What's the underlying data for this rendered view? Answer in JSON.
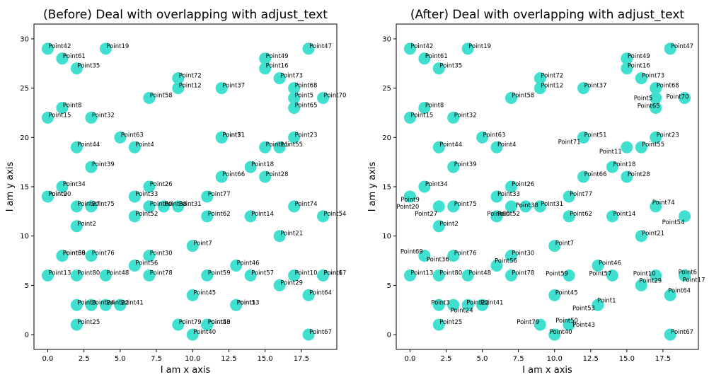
{
  "chart_data": [
    {
      "type": "scatter",
      "title": "(Before) Deal with overlapping with adjust_text",
      "xlabel": "I am x axis",
      "ylabel": "I am y axis",
      "xlim": [
        -0.95,
        19.95
      ],
      "ylim": [
        -1.5,
        31.5
      ],
      "xticks": [
        0.0,
        2.5,
        5.0,
        7.5,
        10.0,
        12.5,
        15.0,
        17.5
      ],
      "yticks": [
        0,
        5,
        10,
        15,
        20,
        25,
        30
      ],
      "grid": false,
      "marker_color": "#40e0d0",
      "points": [
        {
          "label": "Point42",
          "x": 0,
          "y": 29
        },
        {
          "label": "Point19",
          "x": 4,
          "y": 29
        },
        {
          "label": "Point61",
          "x": 1,
          "y": 28
        },
        {
          "label": "Point35",
          "x": 2,
          "y": 27
        },
        {
          "label": "Point49",
          "x": 15,
          "y": 28
        },
        {
          "label": "Point16",
          "x": 15,
          "y": 27
        },
        {
          "label": "Point47",
          "x": 18,
          "y": 29
        },
        {
          "label": "Point73",
          "x": 16,
          "y": 26
        },
        {
          "label": "Point72",
          "x": 9,
          "y": 26
        },
        {
          "label": "Point12",
          "x": 9,
          "y": 25
        },
        {
          "label": "Point37",
          "x": 12,
          "y": 25
        },
        {
          "label": "Point58",
          "x": 7,
          "y": 24
        },
        {
          "label": "Point68",
          "x": 17,
          "y": 25
        },
        {
          "label": "Point5",
          "x": 17,
          "y": 24
        },
        {
          "label": "Point70",
          "x": 19,
          "y": 24
        },
        {
          "label": "Point65",
          "x": 17,
          "y": 23
        },
        {
          "label": "Point8",
          "x": 1,
          "y": 23
        },
        {
          "label": "Point15",
          "x": 0,
          "y": 22
        },
        {
          "label": "Point32",
          "x": 3,
          "y": 22
        },
        {
          "label": "Point63",
          "x": 5,
          "y": 20
        },
        {
          "label": "Point4",
          "x": 6,
          "y": 19
        },
        {
          "label": "Point44",
          "x": 2,
          "y": 19
        },
        {
          "label": "Point51",
          "x": 12,
          "y": 20
        },
        {
          "label": "Point71",
          "x": 12,
          "y": 20
        },
        {
          "label": "Point23",
          "x": 17,
          "y": 20
        },
        {
          "label": "Point11",
          "x": 15,
          "y": 19
        },
        {
          "label": "Point55",
          "x": 16,
          "y": 19
        },
        {
          "label": "Point39",
          "x": 3,
          "y": 17
        },
        {
          "label": "Point18",
          "x": 14,
          "y": 17
        },
        {
          "label": "Point66",
          "x": 12,
          "y": 16
        },
        {
          "label": "Point28",
          "x": 15,
          "y": 16
        },
        {
          "label": "Point34",
          "x": 1,
          "y": 15
        },
        {
          "label": "Point26",
          "x": 7,
          "y": 15
        },
        {
          "label": "Point9",
          "x": 0,
          "y": 14
        },
        {
          "label": "Point20",
          "x": 0,
          "y": 14
        },
        {
          "label": "Point33",
          "x": 6,
          "y": 14
        },
        {
          "label": "Point77",
          "x": 11,
          "y": 14
        },
        {
          "label": "Point27",
          "x": 2,
          "y": 13
        },
        {
          "label": "Point75",
          "x": 3,
          "y": 13
        },
        {
          "label": "Point60",
          "x": 7,
          "y": 13
        },
        {
          "label": "Point38",
          "x": 8,
          "y": 13
        },
        {
          "label": "Point31",
          "x": 9,
          "y": 13
        },
        {
          "label": "Point74",
          "x": 17,
          "y": 13
        },
        {
          "label": "Point52",
          "x": 6,
          "y": 12
        },
        {
          "label": "Point62",
          "x": 11,
          "y": 12
        },
        {
          "label": "Point14",
          "x": 14,
          "y": 12
        },
        {
          "label": "Point54",
          "x": 19,
          "y": 12
        },
        {
          "label": "Point2",
          "x": 2,
          "y": 11
        },
        {
          "label": "Point21",
          "x": 16,
          "y": 10
        },
        {
          "label": "Point7",
          "x": 10,
          "y": 9
        },
        {
          "label": "Point69",
          "x": 1,
          "y": 8
        },
        {
          "label": "Point36",
          "x": 1,
          "y": 8
        },
        {
          "label": "Point76",
          "x": 3,
          "y": 8
        },
        {
          "label": "Point30",
          "x": 7,
          "y": 8
        },
        {
          "label": "Point56",
          "x": 6,
          "y": 7
        },
        {
          "label": "Point46",
          "x": 13,
          "y": 7
        },
        {
          "label": "Point13",
          "x": 0,
          "y": 6
        },
        {
          "label": "Point80",
          "x": 2,
          "y": 6
        },
        {
          "label": "Point48",
          "x": 4,
          "y": 6
        },
        {
          "label": "Point78",
          "x": 7,
          "y": 6
        },
        {
          "label": "Point59",
          "x": 11,
          "y": 6
        },
        {
          "label": "Point57",
          "x": 14,
          "y": 6
        },
        {
          "label": "Point10",
          "x": 17,
          "y": 6
        },
        {
          "label": "Point6",
          "x": 19,
          "y": 6
        },
        {
          "label": "Point17",
          "x": 19,
          "y": 6
        },
        {
          "label": "Point29",
          "x": 16,
          "y": 5
        },
        {
          "label": "Point45",
          "x": 10,
          "y": 4
        },
        {
          "label": "Point64",
          "x": 18,
          "y": 4
        },
        {
          "label": "Point3",
          "x": 2,
          "y": 3
        },
        {
          "label": "Point24",
          "x": 3,
          "y": 3
        },
        {
          "label": "Point22",
          "x": 4,
          "y": 3
        },
        {
          "label": "Point41",
          "x": 5,
          "y": 3
        },
        {
          "label": "Point1",
          "x": 13,
          "y": 3
        },
        {
          "label": "Point53",
          "x": 13,
          "y": 3
        },
        {
          "label": "Point25",
          "x": 2,
          "y": 1
        },
        {
          "label": "Point79",
          "x": 9,
          "y": 1
        },
        {
          "label": "Point50",
          "x": 11,
          "y": 1
        },
        {
          "label": "Point43",
          "x": 11,
          "y": 1
        },
        {
          "label": "Point40",
          "x": 10,
          "y": 0
        },
        {
          "label": "Point67",
          "x": 18,
          "y": 0
        }
      ]
    },
    {
      "type": "scatter",
      "title": "(After) Deal with overlapping with adjust_text",
      "xlabel": "I am x axis",
      "ylabel": "I am y axis",
      "xlim": [
        -0.95,
        19.95
      ],
      "ylim": [
        -1.5,
        31.5
      ],
      "xticks": [
        0.0,
        2.5,
        5.0,
        7.5,
        10.0,
        12.5,
        15.0,
        17.5
      ],
      "yticks": [
        0,
        5,
        10,
        15,
        20,
        25,
        30
      ],
      "grid": false,
      "marker_color": "#40e0d0",
      "points": [
        {
          "label": "Point42",
          "x": 0,
          "y": 29
        },
        {
          "label": "Point19",
          "x": 4,
          "y": 29
        },
        {
          "label": "Point61",
          "x": 1,
          "y": 28
        },
        {
          "label": "Point35",
          "x": 2,
          "y": 27
        },
        {
          "label": "Point49",
          "x": 15,
          "y": 28
        },
        {
          "label": "Point16",
          "x": 15,
          "y": 27
        },
        {
          "label": "Point47",
          "x": 18,
          "y": 29
        },
        {
          "label": "Point73",
          "x": 16,
          "y": 26
        },
        {
          "label": "Point72",
          "x": 9,
          "y": 26
        },
        {
          "label": "Point12",
          "x": 9,
          "y": 25
        },
        {
          "label": "Point37",
          "x": 12,
          "y": 25
        },
        {
          "label": "Point58",
          "x": 7,
          "y": 24
        },
        {
          "label": "Point68",
          "x": 17,
          "y": 25
        },
        {
          "label": "Point5",
          "x": 17,
          "y": 24
        },
        {
          "label": "Point70",
          "x": 19,
          "y": 24
        },
        {
          "label": "Point65",
          "x": 17,
          "y": 23
        },
        {
          "label": "Point8",
          "x": 1,
          "y": 23
        },
        {
          "label": "Point15",
          "x": 0,
          "y": 22
        },
        {
          "label": "Point32",
          "x": 3,
          "y": 22
        },
        {
          "label": "Point63",
          "x": 5,
          "y": 20
        },
        {
          "label": "Point4",
          "x": 6,
          "y": 19
        },
        {
          "label": "Point44",
          "x": 2,
          "y": 19
        },
        {
          "label": "Point51",
          "x": 12,
          "y": 20
        },
        {
          "label": "Point71",
          "x": 12,
          "y": 20
        },
        {
          "label": "Point23",
          "x": 17,
          "y": 20
        },
        {
          "label": "Point11",
          "x": 15,
          "y": 19
        },
        {
          "label": "Point55",
          "x": 16,
          "y": 19
        },
        {
          "label": "Point39",
          "x": 3,
          "y": 17
        },
        {
          "label": "Point18",
          "x": 14,
          "y": 17
        },
        {
          "label": "Point66",
          "x": 12,
          "y": 16
        },
        {
          "label": "Point28",
          "x": 15,
          "y": 16
        },
        {
          "label": "Point34",
          "x": 1,
          "y": 15
        },
        {
          "label": "Point26",
          "x": 7,
          "y": 15
        },
        {
          "label": "Point9",
          "x": 0,
          "y": 14
        },
        {
          "label": "Point20",
          "x": 0,
          "y": 14
        },
        {
          "label": "Point33",
          "x": 6,
          "y": 14
        },
        {
          "label": "Point77",
          "x": 11,
          "y": 14
        },
        {
          "label": "Point27",
          "x": 2,
          "y": 13
        },
        {
          "label": "Point75",
          "x": 3,
          "y": 13
        },
        {
          "label": "Point60",
          "x": 7,
          "y": 13
        },
        {
          "label": "Point38",
          "x": 8,
          "y": 13
        },
        {
          "label": "Point31",
          "x": 9,
          "y": 13
        },
        {
          "label": "Point74",
          "x": 17,
          "y": 13
        },
        {
          "label": "Point52",
          "x": 6,
          "y": 12
        },
        {
          "label": "Point62",
          "x": 11,
          "y": 12
        },
        {
          "label": "Point14",
          "x": 14,
          "y": 12
        },
        {
          "label": "Point54",
          "x": 19,
          "y": 12
        },
        {
          "label": "Point2",
          "x": 2,
          "y": 11
        },
        {
          "label": "Point21",
          "x": 16,
          "y": 10
        },
        {
          "label": "Point7",
          "x": 10,
          "y": 9
        },
        {
          "label": "Point69",
          "x": 1,
          "y": 8
        },
        {
          "label": "Point36",
          "x": 1,
          "y": 8
        },
        {
          "label": "Point76",
          "x": 3,
          "y": 8
        },
        {
          "label": "Point30",
          "x": 7,
          "y": 8
        },
        {
          "label": "Point56",
          "x": 6,
          "y": 7
        },
        {
          "label": "Point46",
          "x": 13,
          "y": 7
        },
        {
          "label": "Point13",
          "x": 0,
          "y": 6
        },
        {
          "label": "Point80",
          "x": 2,
          "y": 6
        },
        {
          "label": "Point48",
          "x": 4,
          "y": 6
        },
        {
          "label": "Point78",
          "x": 7,
          "y": 6
        },
        {
          "label": "Point59",
          "x": 11,
          "y": 6
        },
        {
          "label": "Point57",
          "x": 14,
          "y": 6
        },
        {
          "label": "Point10",
          "x": 17,
          "y": 6
        },
        {
          "label": "Point6",
          "x": 19,
          "y": 6
        },
        {
          "label": "Point17",
          "x": 19,
          "y": 6
        },
        {
          "label": "Point29",
          "x": 16,
          "y": 5
        },
        {
          "label": "Point45",
          "x": 10,
          "y": 4
        },
        {
          "label": "Point64",
          "x": 18,
          "y": 4
        },
        {
          "label": "Point3",
          "x": 2,
          "y": 3
        },
        {
          "label": "Point24",
          "x": 3,
          "y": 3
        },
        {
          "label": "Point22",
          "x": 4,
          "y": 3
        },
        {
          "label": "Point41",
          "x": 5,
          "y": 3
        },
        {
          "label": "Point1",
          "x": 13,
          "y": 3
        },
        {
          "label": "Point53",
          "x": 13,
          "y": 3
        },
        {
          "label": "Point25",
          "x": 2,
          "y": 1
        },
        {
          "label": "Point79",
          "x": 9,
          "y": 1
        },
        {
          "label": "Point50",
          "x": 11,
          "y": 1
        },
        {
          "label": "Point43",
          "x": 11,
          "y": 1
        },
        {
          "label": "Point40",
          "x": 10,
          "y": 0
        },
        {
          "label": "Point67",
          "x": 18,
          "y": 0
        }
      ]
    }
  ]
}
